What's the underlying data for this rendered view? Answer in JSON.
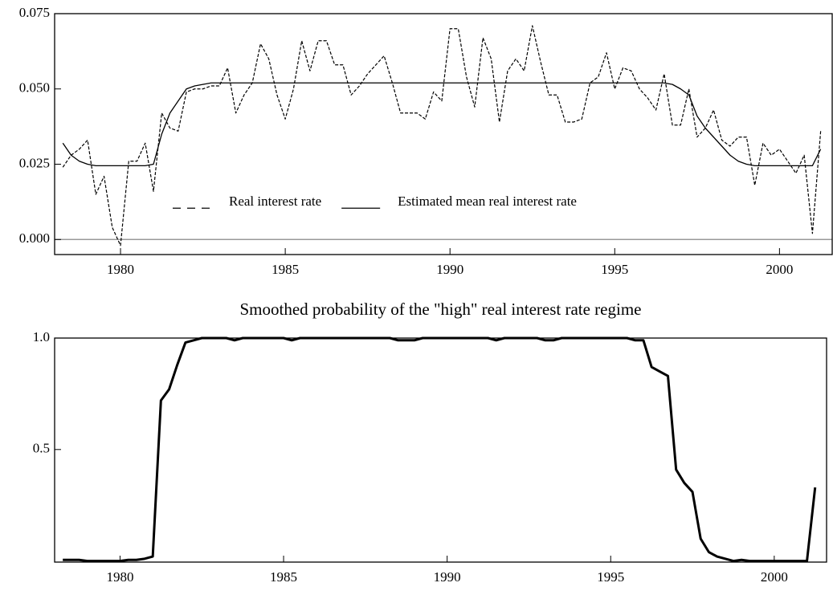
{
  "chart_data": [
    {
      "type": "line",
      "x": [
        1978.25,
        1978.5,
        1978.75,
        1979,
        1979.25,
        1979.5,
        1979.75,
        1980,
        1980.25,
        1980.5,
        1980.75,
        1981,
        1981.25,
        1981.5,
        1981.75,
        1982,
        1982.25,
        1982.5,
        1982.75,
        1983,
        1983.25,
        1983.5,
        1983.75,
        1984,
        1984.25,
        1984.5,
        1984.75,
        1985,
        1985.25,
        1985.5,
        1985.75,
        1986,
        1986.25,
        1986.5,
        1986.75,
        1987,
        1987.25,
        1987.5,
        1987.75,
        1988,
        1988.25,
        1988.5,
        1988.75,
        1989,
        1989.25,
        1989.5,
        1989.75,
        1990,
        1990.25,
        1990.5,
        1990.75,
        1991,
        1991.25,
        1991.5,
        1991.75,
        1992,
        1992.25,
        1992.5,
        1992.75,
        1993,
        1993.25,
        1993.5,
        1993.75,
        1994,
        1994.25,
        1994.5,
        1994.75,
        1995,
        1995.25,
        1995.5,
        1995.75,
        1996,
        1996.25,
        1996.5,
        1996.75,
        1997,
        1997.25,
        1997.5,
        1997.75,
        1998,
        1998.25,
        1998.5,
        1998.75,
        1999,
        1999.25,
        1999.5,
        1999.75,
        2000,
        2000.25,
        2000.5,
        2000.75,
        2001,
        2001.25
      ],
      "series": [
        {
          "name": "Real interest rate",
          "color": "#000000",
          "style": "dashed",
          "values": [
            0.024,
            0.028,
            0.03,
            0.033,
            0.015,
            0.021,
            0.004,
            -0.002,
            0.026,
            0.026,
            0.032,
            0.016,
            0.042,
            0.037,
            0.036,
            0.049,
            0.05,
            0.05,
            0.051,
            0.051,
            0.057,
            0.042,
            0.048,
            0.052,
            0.065,
            0.06,
            0.048,
            0.04,
            0.05,
            0.066,
            0.056,
            0.066,
            0.066,
            0.058,
            0.058,
            0.048,
            0.051,
            0.055,
            0.058,
            0.061,
            0.052,
            0.042,
            0.042,
            0.042,
            0.04,
            0.049,
            0.046,
            0.07,
            0.07,
            0.054,
            0.044,
            0.067,
            0.06,
            0.039,
            0.056,
            0.06,
            0.056,
            0.071,
            0.059,
            0.048,
            0.048,
            0.039,
            0.039,
            0.04,
            0.052,
            0.054,
            0.062,
            0.05,
            0.057,
            0.056,
            0.05,
            0.047,
            0.043,
            0.055,
            0.038,
            0.038,
            0.05,
            0.034,
            0.037,
            0.043,
            0.033,
            0.031,
            0.034,
            0.034,
            0.018,
            0.032,
            0.028,
            0.03,
            0.026,
            0.022,
            0.028,
            0.002,
            0.036
          ]
        },
        {
          "name": "Estimated mean real interest rate",
          "color": "#000000",
          "style": "solid",
          "values": [
            0.032,
            0.028,
            0.026,
            0.025,
            0.0245,
            0.0245,
            0.0245,
            0.0245,
            0.0245,
            0.0245,
            0.0245,
            0.025,
            0.035,
            0.042,
            0.046,
            0.05,
            0.051,
            0.0515,
            0.052,
            0.052,
            0.052,
            0.052,
            0.052,
            0.052,
            0.052,
            0.052,
            0.052,
            0.052,
            0.052,
            0.052,
            0.052,
            0.052,
            0.052,
            0.052,
            0.052,
            0.052,
            0.052,
            0.052,
            0.052,
            0.052,
            0.052,
            0.052,
            0.052,
            0.052,
            0.052,
            0.052,
            0.052,
            0.052,
            0.052,
            0.052,
            0.052,
            0.052,
            0.052,
            0.052,
            0.052,
            0.052,
            0.052,
            0.052,
            0.052,
            0.052,
            0.052,
            0.052,
            0.052,
            0.052,
            0.052,
            0.052,
            0.052,
            0.052,
            0.052,
            0.052,
            0.052,
            0.052,
            0.052,
            0.052,
            0.0515,
            0.05,
            0.048,
            0.041,
            0.037,
            0.034,
            0.031,
            0.028,
            0.026,
            0.025,
            0.0245,
            0.0245,
            0.0245,
            0.0245,
            0.0245,
            0.0245,
            0.0245,
            0.0245,
            0.03
          ]
        }
      ],
      "xlim": [
        1978,
        2001.6
      ],
      "xticks": [
        1980,
        1985,
        1990,
        1995,
        2000
      ],
      "ylim": [
        -0.005,
        0.075
      ],
      "yticks": [
        {
          "value": 0,
          "label": "0.000"
        },
        {
          "value": 0.025,
          "label": "0.025"
        },
        {
          "value": 0.05,
          "label": "0.050"
        },
        {
          "value": 0.075,
          "label": "0.075"
        }
      ],
      "zero_line": true,
      "legend": "lower center"
    },
    {
      "type": "line",
      "title": "Smoothed probability of the \"high\" real interest rate regime",
      "x": [
        1978.25,
        1978.5,
        1978.75,
        1979,
        1979.25,
        1979.5,
        1979.75,
        1980,
        1980.25,
        1980.5,
        1980.75,
        1981,
        1981.25,
        1981.5,
        1981.75,
        1982,
        1982.25,
        1982.5,
        1982.75,
        1983,
        1983.25,
        1983.5,
        1983.75,
        1984,
        1984.25,
        1984.5,
        1984.75,
        1985,
        1985.25,
        1985.5,
        1985.75,
        1986,
        1986.25,
        1986.5,
        1986.75,
        1987,
        1987.25,
        1987.5,
        1987.75,
        1988,
        1988.25,
        1988.5,
        1988.75,
        1989,
        1989.25,
        1989.5,
        1989.75,
        1990,
        1990.25,
        1990.5,
        1990.75,
        1991,
        1991.25,
        1991.5,
        1991.75,
        1992,
        1992.25,
        1992.5,
        1992.75,
        1993,
        1993.25,
        1993.5,
        1993.75,
        1994,
        1994.25,
        1994.5,
        1994.75,
        1995,
        1995.25,
        1995.5,
        1995.75,
        1996,
        1996.25,
        1996.5,
        1996.75,
        1997,
        1997.25,
        1997.5,
        1997.75,
        1998,
        1998.25,
        1998.5,
        1998.75,
        1999,
        1999.25,
        1999.5,
        1999.75,
        2000,
        2000.25,
        2000.5,
        2000.75,
        2001,
        2001.25
      ],
      "series": [
        {
          "color": "#000000",
          "style": "thick",
          "values": [
            0.005,
            0.005,
            0.005,
            0,
            0,
            0,
            0,
            0,
            0.005,
            0.005,
            0.01,
            0.02,
            0.72,
            0.77,
            0.88,
            0.98,
            0.99,
            1,
            1,
            1,
            1,
            0.99,
            1,
            1,
            1,
            1,
            1,
            1,
            0.99,
            1,
            1,
            1,
            1,
            1,
            1,
            1,
            1,
            1,
            1,
            1,
            1,
            0.99,
            0.99,
            0.99,
            1,
            1,
            1,
            1,
            1,
            1,
            1,
            1,
            1,
            0.99,
            1,
            1,
            1,
            1,
            1,
            0.99,
            0.99,
            1,
            1,
            1,
            1,
            1,
            1,
            1,
            1,
            1,
            0.99,
            0.99,
            0.87,
            0.85,
            0.83,
            0.41,
            0.35,
            0.31,
            0.1,
            0.04,
            0.02,
            0.01,
            0,
            0.005,
            0,
            0,
            0,
            0,
            0,
            0,
            0,
            0,
            0.33
          ]
        }
      ],
      "xlim": [
        1978,
        2001.6
      ],
      "xticks": [
        1980,
        1985,
        1990,
        1995,
        2000
      ],
      "ylim": [
        -0.005,
        1.0
      ],
      "yticks": [
        0.5,
        {
          "value": 1,
          "label": "1.0"
        }
      ]
    }
  ]
}
